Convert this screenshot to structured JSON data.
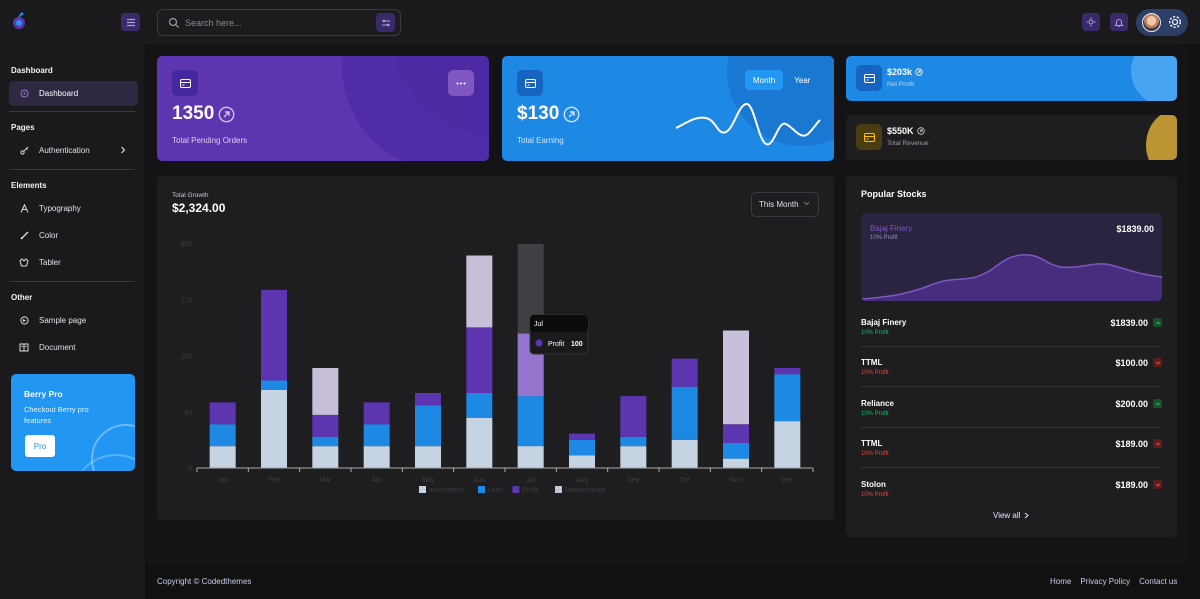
{
  "header": {
    "search_placeholder": "Search here..."
  },
  "sidebar": {
    "sections": [
      {
        "title": "Dashboard",
        "items": [
          {
            "label": "Dashboard",
            "icon": "dashboard-icon",
            "active": true
          }
        ]
      },
      {
        "title": "Pages",
        "items": [
          {
            "label": "Authentication",
            "icon": "key-icon"
          }
        ]
      },
      {
        "title": "Elements",
        "items": [
          {
            "label": "Typography",
            "icon": "typography-icon"
          },
          {
            "label": "Color",
            "icon": "palette-icon"
          },
          {
            "label": "Tabler",
            "icon": "tabler-icon"
          }
        ]
      },
      {
        "title": "Other",
        "items": [
          {
            "label": "Sample page",
            "icon": "brand-icon"
          },
          {
            "label": "Document",
            "icon": "document-icon"
          }
        ]
      }
    ],
    "promo": {
      "title": "Berry Pro",
      "text": "Checkout Berry pro features",
      "button": "Pro"
    }
  },
  "cards": {
    "orders": {
      "value": "1350",
      "label": "Total Pending Orders"
    },
    "earning": {
      "value": "$130",
      "label": "Total Earning",
      "toggle": [
        "Month",
        "Year"
      ],
      "active_toggle": "Month"
    },
    "net_profit": {
      "value": "$203k",
      "label": "Net Profit"
    },
    "revenue": {
      "value": "$550K",
      "label": "Total Revenue"
    }
  },
  "growth": {
    "subtitle": "Total Growth",
    "total": "$2,324.00",
    "filter": "This Month",
    "tooltip": {
      "title": "Jul",
      "series": "Profit",
      "value": "100"
    }
  },
  "chart_data": {
    "type": "bar",
    "stacked": true,
    "categories": [
      "Jan",
      "Feb",
      "Mar",
      "Apr",
      "May",
      "Jun",
      "Jul",
      "Aug",
      "Sep",
      "Oct",
      "Nov",
      "Dec"
    ],
    "yticks": [
      0,
      90,
      180,
      270,
      360
    ],
    "ylim": [
      0,
      360
    ],
    "series": [
      {
        "name": "Investment",
        "color": "#c5d3e2",
        "values": [
          35,
          125,
          35,
          35,
          35,
          80,
          35,
          20,
          35,
          45,
          15,
          75
        ]
      },
      {
        "name": "Loss",
        "color": "#1e88e5",
        "values": [
          35,
          15,
          15,
          35,
          65,
          40,
          80,
          25,
          15,
          85,
          25,
          75
        ]
      },
      {
        "name": "Profit",
        "color": "#5e35b1",
        "values": [
          35,
          145,
          35,
          35,
          20,
          105,
          100,
          10,
          65,
          45,
          30,
          10
        ]
      },
      {
        "name": "Maintenance",
        "color": "#c8bfdb",
        "values": [
          0,
          0,
          75,
          0,
          0,
          115,
          0,
          0,
          0,
          0,
          150,
          0
        ]
      }
    ],
    "legend_position": "bottom",
    "highlight_category": "Jul"
  },
  "stocks": {
    "title": "Popular Stocks",
    "hero": {
      "name": "Bajaj Finery",
      "sub": "10% Profit",
      "value": "$1839.00"
    },
    "rows": [
      {
        "name": "Bajaj Finery",
        "sub": "10% Profit",
        "value": "$1839.00",
        "trend": "up"
      },
      {
        "name": "TTML",
        "sub": "10% Profit",
        "value": "$100.00",
        "trend": "down"
      },
      {
        "name": "Reliance",
        "sub": "10% Profit",
        "value": "$200.00",
        "trend": "up"
      },
      {
        "name": "TTML",
        "sub": "10% Profit",
        "value": "$189.00",
        "trend": "down"
      },
      {
        "name": "Stolon",
        "sub": "10% Profit",
        "value": "$189.00",
        "trend": "down"
      }
    ],
    "view_all": "View all"
  },
  "footer": {
    "copyright": "Copyright © Codedthemes",
    "links": [
      "Home",
      "Privacy Policy",
      "Contact us"
    ]
  }
}
